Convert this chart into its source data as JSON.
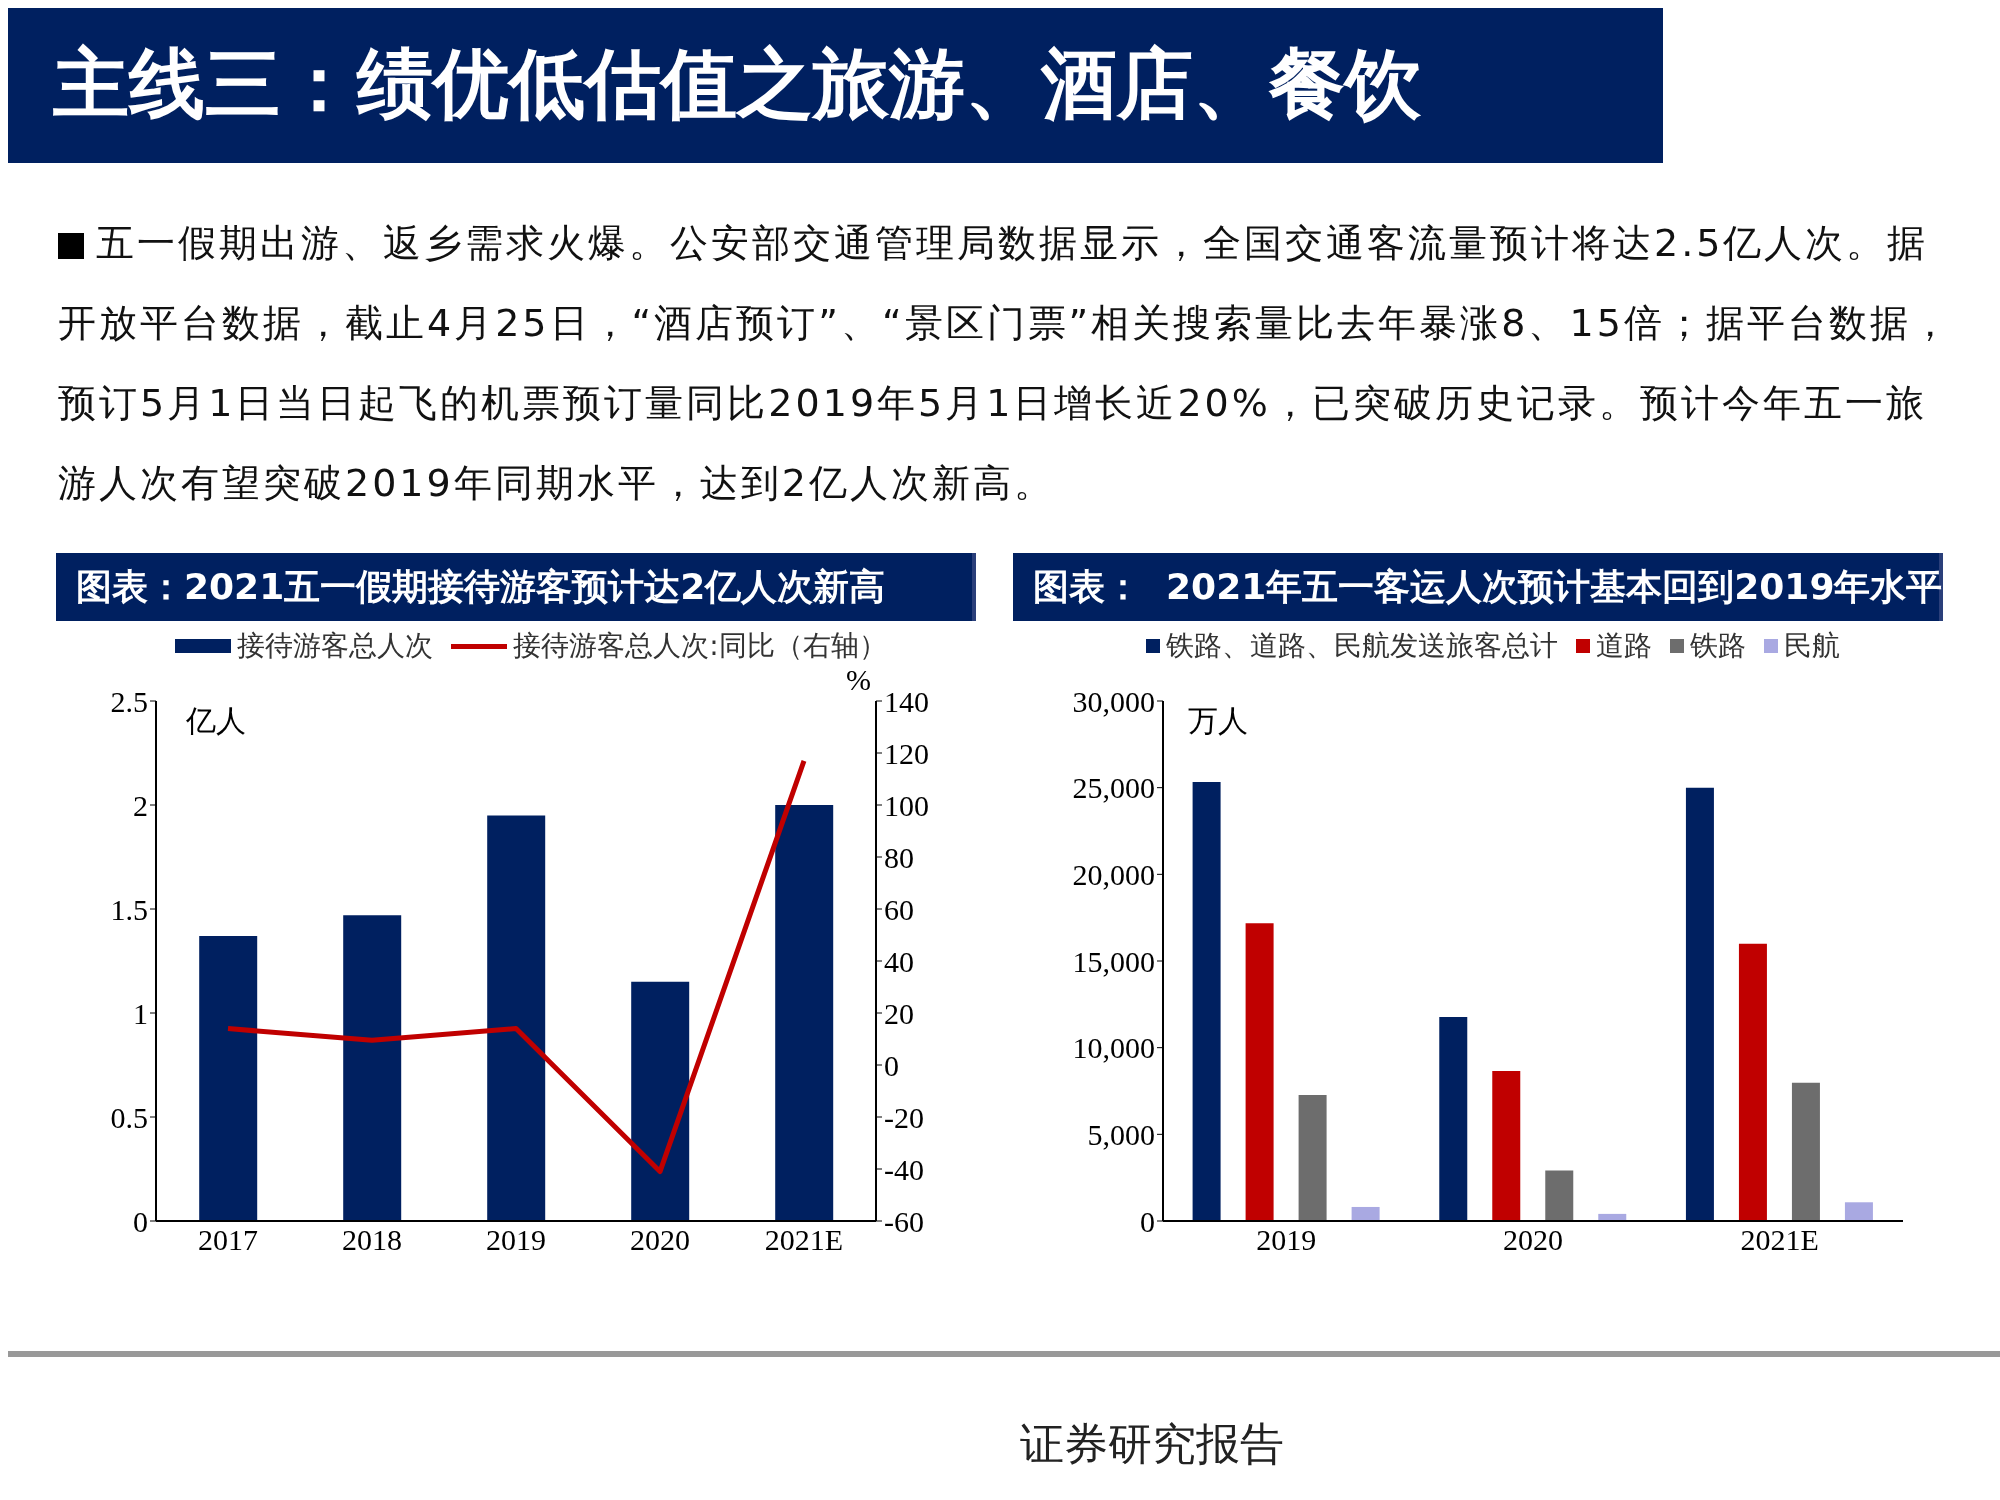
{
  "chart_data": [
    {
      "type": "other",
      "title": "主线三：绩优低估值之旅游、酒店、餐饮",
      "annotations": [
        "五一假期出游、返乡需求火爆。公安部交通管理局数据显示，全国交通客流量预计将达2.5亿人次。据开放平台数据，截止4月25日，“酒店预订”、“景区门票”相关搜索量比去年暴涨8、15倍；据平台数据，预订5月1日当日起飞的机票预订量同比2019年5月1日增长近20%，已突破历史记录。预计今年五一旅游人次有望突破2019年同期水平，达到2亿人次新高。",
        "证券研究报告"
      ]
    },
    {
      "type": "bar",
      "title": "图表：2021五一假期接待游客预计达2亿人次新高",
      "ylabel": "亿人",
      "y2label": "%",
      "categories": [
        "2017",
        "2018",
        "2019",
        "2020",
        "2021E"
      ],
      "series": [
        {
          "name": "接待游客总人次",
          "color": "#002060",
          "values": [
            1.37,
            1.47,
            1.95,
            1.15,
            2.0
          ]
        },
        {
          "name": "接待游客总人次:同比（右轴）",
          "type": "line",
          "axis": "y2",
          "color": "#c00000",
          "values": [
            14,
            9.5,
            14,
            -41,
            117
          ]
        }
      ],
      "ylim": [
        0,
        2.5
      ],
      "yticks": [
        0,
        0.5,
        1,
        1.5,
        2,
        2.5
      ],
      "y2lim": [
        -60,
        140
      ],
      "y2ticks": [
        -60,
        -40,
        -20,
        0,
        20,
        40,
        60,
        80,
        100,
        120,
        140
      ],
      "grid": false,
      "legend": "top",
      "marker": "none",
      "line_style": "solid"
    },
    {
      "type": "bar",
      "title": "图表：  2021年五一客运人次预计基本回到2019年水平",
      "ylabel": "万人",
      "categories": [
        "2019",
        "2020",
        "2021E"
      ],
      "series": [
        {
          "name": "铁路、道路、民航发送旅客总计",
          "color": "#002060",
          "values": [
            25330,
            11770,
            24990
          ]
        },
        {
          "name": "道路",
          "color": "#c00000",
          "values": [
            17180,
            8660,
            16000
          ]
        },
        {
          "name": "铁路",
          "color": "#6d6d6d",
          "values": [
            7270,
            2910,
            7980
          ]
        },
        {
          "name": "民航",
          "color": "#a9a9e2",
          "values": [
            810,
            410,
            1080
          ]
        }
      ],
      "ylim": [
        0,
        30000
      ],
      "yticks": [
        0,
        {
          "value": 5000,
          "label": "5,000"
        },
        {
          "value": 10000,
          "label": "10,000"
        },
        {
          "value": 15000,
          "label": "15,000"
        },
        {
          "value": 20000,
          "label": "20,000"
        },
        {
          "value": 25000,
          "label": "25,000"
        },
        {
          "value": 30000,
          "label": "30,000"
        }
      ],
      "grid": false,
      "legend": "top"
    }
  ]
}
